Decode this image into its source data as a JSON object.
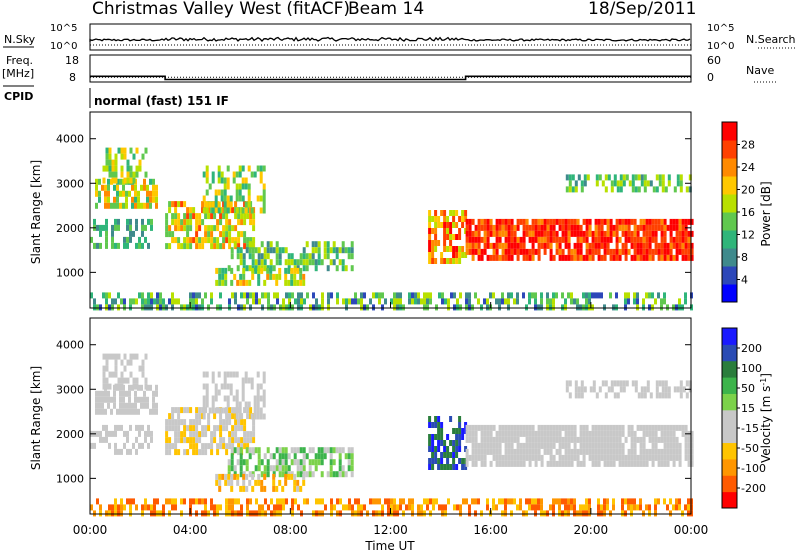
{
  "header": {
    "title": "Christmas Valley West (fitACF)",
    "beam": "Beam 14",
    "date": "18/Sep/2011"
  },
  "left_labels": {
    "nsky": "N.Sky",
    "freq": "Freq.",
    "freq_unit": "[MHz]",
    "cpid": "CPID"
  },
  "right_labels": {
    "nsearch": "N.Search",
    "nave": "Nave"
  },
  "cpid_text": "normal (fast) 151 IF",
  "colors": {
    "power_scale": [
      "#0000ff",
      "#2c47b9",
      "#3f8a8c",
      "#2fb57a",
      "#60c84f",
      "#b8e000",
      "#ffc800",
      "#ff8a00",
      "#ff4000",
      "#ff0000"
    ],
    "velocity_scale": [
      "#ff0000",
      "#ff5a00",
      "#ff9600",
      "#ffc400",
      "#c8c8c8",
      "#c8c8c8",
      "#7cd24a",
      "#3cb44b",
      "#2a7d3c",
      "#2a4bb4",
      "#1a1aff"
    ]
  },
  "chart_data": [
    {
      "type": "line",
      "panel": "noise",
      "x_range": [
        "00:00",
        "24:00"
      ],
      "left_ticks": [
        "10^5",
        "10^0"
      ],
      "right_ticks": [
        "10^5",
        "10^0"
      ],
      "series": [
        {
          "name": "N.Sky",
          "style": "solid"
        },
        {
          "name": "N.Search",
          "style": "dotted"
        }
      ]
    },
    {
      "type": "line",
      "panel": "frequency",
      "left_ticks": [
        "18",
        "8"
      ],
      "right_ticks": [
        "60",
        "0"
      ],
      "series": [
        {
          "name": "Freq.",
          "style": "solid",
          "points": [
            [
              "00:00",
              10.5
            ],
            [
              "03:00",
              10.5
            ],
            [
              "03:00",
              8.8
            ],
            [
              "15:00",
              8.8
            ],
            [
              "15:00",
              10.5
            ],
            [
              "24:00",
              10.5
            ]
          ]
        },
        {
          "name": "Nave",
          "style": "dotted",
          "value": 12
        }
      ]
    },
    {
      "type": "heatmap",
      "panel": "power",
      "xlabel": "",
      "ylabel": "Slant Range [km]",
      "ylim": [
        200,
        4600
      ],
      "yticks": [
        "1000",
        "2000",
        "3000",
        "4000"
      ],
      "colorbar_label": "Power [dB]",
      "colorbar_ticks": [
        "28",
        "24",
        "20",
        "16",
        "12",
        "8",
        "4"
      ]
    },
    {
      "type": "heatmap",
      "panel": "velocity",
      "xlabel": "Time UT",
      "ylabel": "Slant Range [km]",
      "ylim": [
        200,
        4600
      ],
      "yticks": [
        "1000",
        "2000",
        "3000",
        "4000"
      ],
      "xticks": [
        "00:00",
        "04:00",
        "08:00",
        "12:00",
        "16:00",
        "20:00",
        "00:00"
      ],
      "colorbar_label": "Velocity [m s",
      "colorbar_label_sup": "-1",
      "colorbar_label_end": "]",
      "colorbar_ticks": [
        "200",
        "100",
        "50",
        "15",
        "-15",
        "-50",
        "-100",
        "-200"
      ]
    }
  ]
}
